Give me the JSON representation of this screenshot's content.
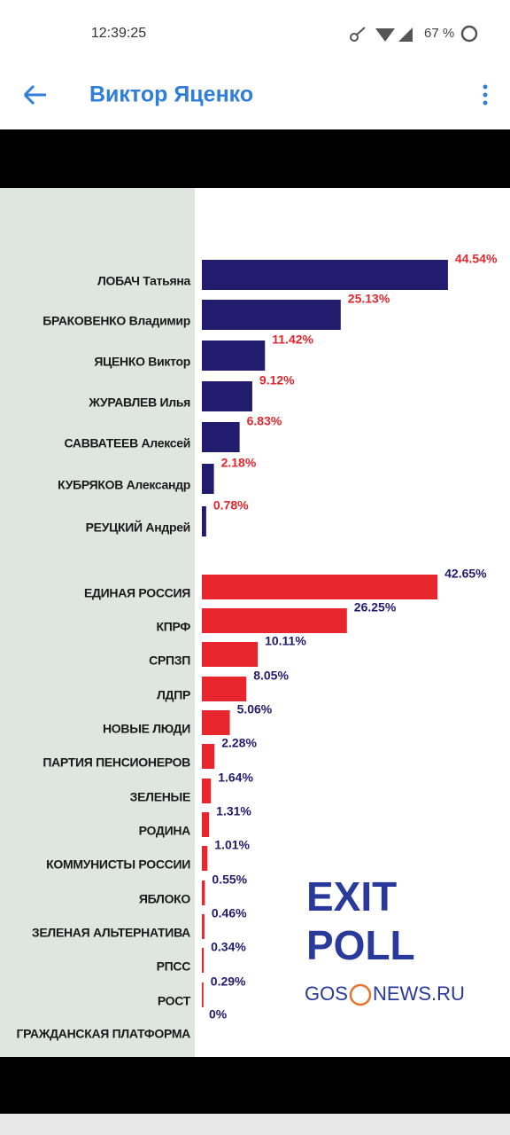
{
  "status_bar": {
    "time": "12:39:25",
    "battery": "67 %"
  },
  "app_bar": {
    "title": "Виктор Яценко"
  },
  "chart_data": [
    {
      "type": "bar",
      "categories": [
        "ЛОБАЧ Татьяна",
        "БРАКОВЕНКО Владимир",
        "ЯЦЕНКО Виктор",
        "ЖУРАВЛЕВ Илья",
        "САВВАТЕЕВ Алексей",
        "КУБРЯКОВ Александр",
        "РЕУЦКИЙ Андрей"
      ],
      "values": [
        44.54,
        25.13,
        11.42,
        9.12,
        6.83,
        2.18,
        0.78
      ],
      "value_labels": [
        "44.54%",
        "25.13%",
        "11.42%",
        "9.12%",
        "6.83%",
        "2.18%",
        "0.78%"
      ],
      "color": "#211c6e",
      "label_color": "#e3262d"
    },
    {
      "type": "bar",
      "categories": [
        "ЕДИНАЯ РОССИЯ",
        "КПРФ",
        "СРПЗП",
        "ЛДПР",
        "НОВЫЕ ЛЮДИ",
        "ПАРТИЯ ПЕНСИОНЕРОВ",
        "ЗЕЛЕНЫЕ",
        "РОДИНА",
        "КОММУНИСТЫ РОССИИ",
        "ЯБЛОКО",
        "ЗЕЛЕНАЯ АЛЬТЕРНАТИВА",
        "РПСС",
        "РОСТ",
        "ГРАЖДАНСКАЯ ПЛАТФОРМА"
      ],
      "values": [
        42.65,
        26.25,
        10.11,
        8.05,
        5.06,
        2.28,
        1.64,
        1.31,
        1.01,
        0.55,
        0.46,
        0.34,
        0.29,
        0
      ],
      "value_labels": [
        "42.65%",
        "26.25%",
        "10.11%",
        "8.05%",
        "5.06%",
        "2.28%",
        "1.64%",
        "1.31%",
        "1.01%",
        "0.55%",
        "0.46%",
        "0.34%",
        "0.29%",
        "0%"
      ],
      "color": "#e8262d",
      "label_color": "#211c6e"
    }
  ],
  "watermark": {
    "line1": "EXIT",
    "line2": "POLL",
    "source_left": "GOS",
    "source_right": "NEWS.RU"
  }
}
